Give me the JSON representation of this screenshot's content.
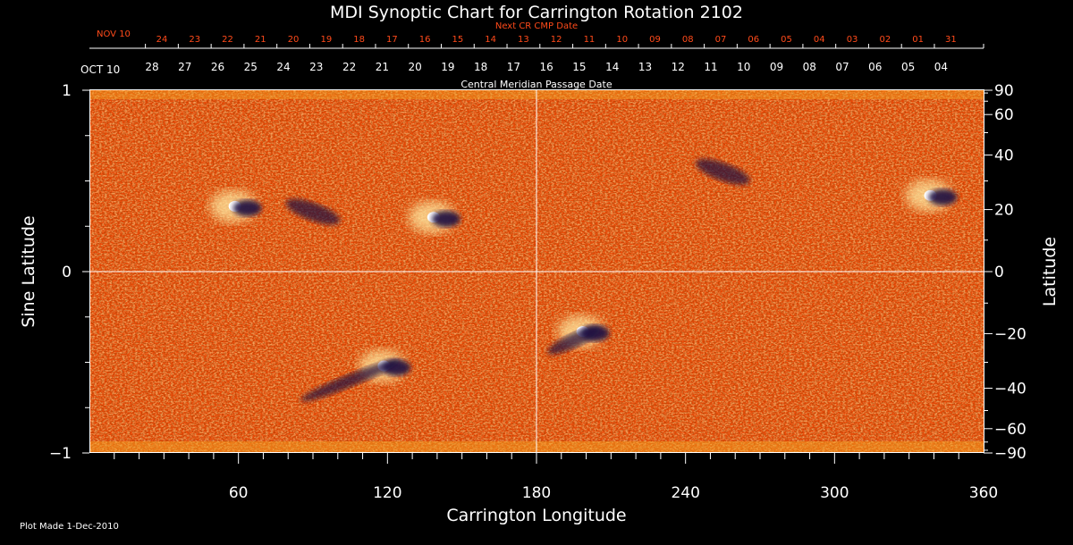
{
  "title": "MDI Synoptic Chart for Carrington Rotation 2102",
  "footer": "Plot Made  1-Dec-2010",
  "colors": {
    "background": "#000000",
    "axes": "#ffffff",
    "next_cr_dates": "#ff4a1a",
    "map_base": "#ee4a08",
    "map_bright": "#ffe9a0",
    "map_dark": "#1a1040"
  },
  "chart_data": {
    "type": "heatmap",
    "title": "MDI Synoptic Chart for Carrington Rotation 2102",
    "xlabel": "Carrington Longitude",
    "ylabel_left": "Sine Latitude",
    "ylabel_right": "Latitude",
    "xlim": [
      0,
      360
    ],
    "ylim_sine": [
      -1,
      1
    ],
    "x_ticks": [
      "60",
      "120",
      "180",
      "240",
      "300",
      "360"
    ],
    "x_tick_values": [
      60,
      120,
      180,
      240,
      300,
      360
    ],
    "y_left_ticks": [
      "1",
      "0",
      "−1"
    ],
    "y_left_tick_values": [
      1,
      0,
      -1
    ],
    "y_right_ticks": [
      "90",
      "60",
      "40",
      "20",
      "0",
      "−20",
      "−40",
      "−60",
      "−90"
    ],
    "y_right_tick_values": [
      90,
      60,
      40,
      20,
      0,
      -20,
      -40,
      -60,
      -90
    ],
    "grid_lines": {
      "longitude": 180,
      "sine_latitude": 0
    },
    "top_axis_label": "Central Meridian Passage Date",
    "cmp_start_label": "OCT 10",
    "cmp_dates": [
      "28",
      "27",
      "26",
      "25",
      "24",
      "23",
      "22",
      "21",
      "20",
      "19",
      "18",
      "17",
      "16",
      "15",
      "14",
      "13",
      "12",
      "11",
      "10",
      "09",
      "08",
      "07",
      "06",
      "05",
      "04"
    ],
    "next_cr_label": "Next CR CMP Date",
    "next_cr_start_label": "NOV 10",
    "next_cr_dates": [
      "24",
      "23",
      "22",
      "21",
      "20",
      "19",
      "18",
      "17",
      "16",
      "15",
      "14",
      "13",
      "12",
      "11",
      "10",
      "09",
      "08",
      "07",
      "06",
      "05",
      "04",
      "03",
      "02",
      "01",
      "31"
    ],
    "active_regions": [
      {
        "longitude": 60,
        "sine_latitude": 0.36,
        "polarity": "mixed"
      },
      {
        "longitude": 90,
        "sine_latitude": 0.33,
        "polarity": "negative"
      },
      {
        "longitude": 140,
        "sine_latitude": 0.3,
        "polarity": "mixed"
      },
      {
        "longitude": 120,
        "sine_latitude": -0.52,
        "polarity": "mixed"
      },
      {
        "longitude": 200,
        "sine_latitude": -0.33,
        "polarity": "mixed"
      },
      {
        "longitude": 255,
        "sine_latitude": 0.55,
        "polarity": "negative"
      },
      {
        "longitude": 340,
        "sine_latitude": 0.42,
        "polarity": "mixed"
      }
    ]
  }
}
